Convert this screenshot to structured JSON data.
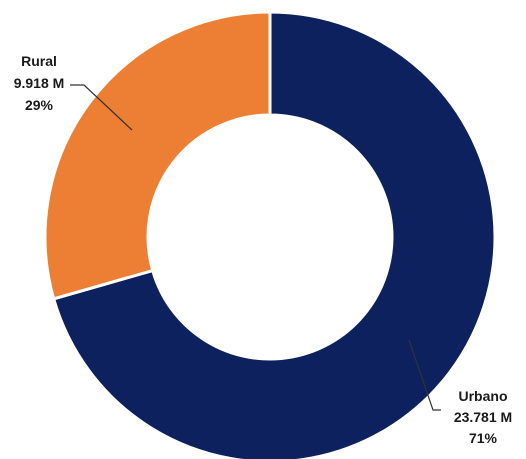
{
  "chart_data": {
    "type": "pie",
    "subtype": "donut",
    "slices": [
      {
        "label": "Urbano",
        "value": 23.781,
        "display_value": "23.781 M",
        "percent": "71%",
        "color": "#0c215e"
      },
      {
        "label": "Rural",
        "value": 9.918,
        "display_value": "9.918 M",
        "percent": "29%",
        "color": "#ed7f34"
      }
    ],
    "start_angle_deg": 0,
    "direction": "clockwise",
    "legend": "none",
    "separator_color": "#ffffff",
    "leader_line_color": "#333333"
  }
}
